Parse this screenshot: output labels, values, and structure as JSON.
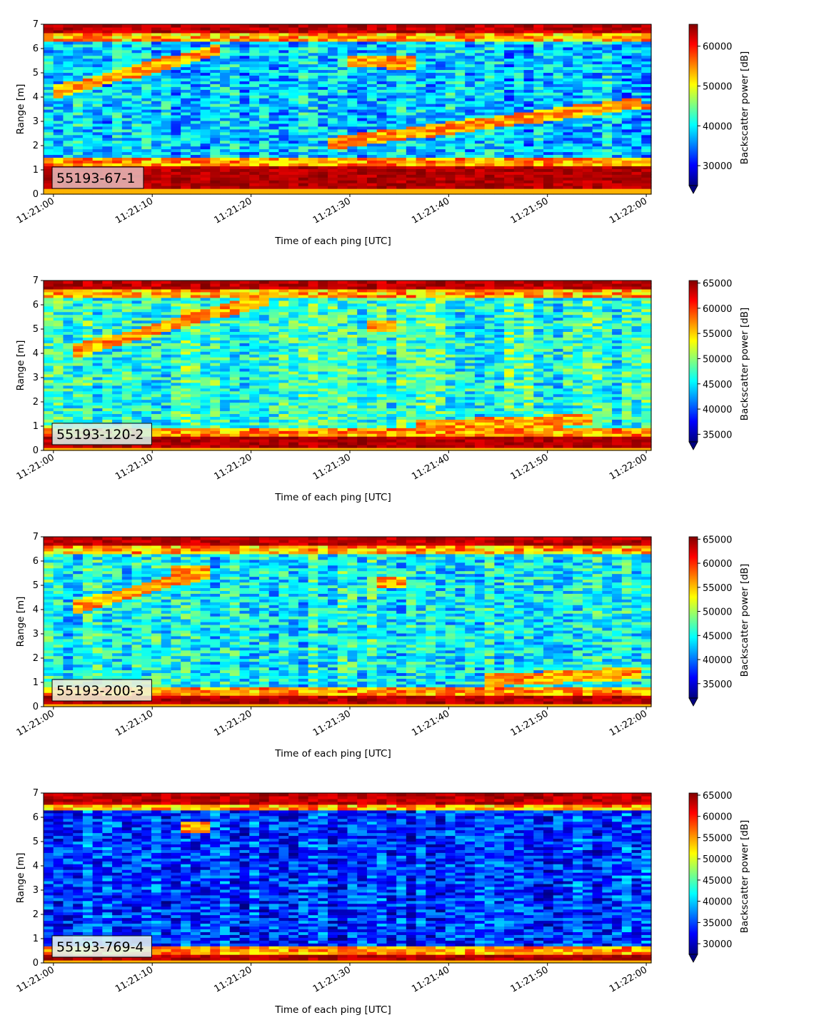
{
  "chart_data": [
    {
      "type": "heatmap",
      "label": "55193-67-1",
      "xlabel": "Time of each ping [UTC]",
      "ylabel": "Range [m]",
      "xticks": [
        "11:21:00",
        "11:21:10",
        "11:21:20",
        "11:21:30",
        "11:21:40",
        "11:21:50",
        "11:22:00"
      ],
      "yticks": [
        "0",
        "1",
        "2",
        "3",
        "4",
        "5",
        "6",
        "7"
      ],
      "xlim_seconds": [
        -1,
        60.5
      ],
      "ylim": [
        0,
        7
      ],
      "colorbar": {
        "label": "Backscatter power [dB]",
        "ticks": [
          "30000",
          "40000",
          "50000",
          "60000"
        ],
        "tick_values": [
          30000,
          40000,
          50000,
          60000
        ],
        "range": [
          25000,
          65500
        ],
        "colormap": "jet"
      },
      "features": {
        "surface_band": [
          6.6,
          7.0
        ],
        "bottom_band": [
          0.2,
          1.2
        ],
        "noise_level": 0.32,
        "streaks": [
          {
            "t0": 0,
            "r0": 4.2,
            "t1": 17,
            "r1": 6.0
          },
          {
            "t0": 30,
            "r0": 5.5,
            "t1": 37,
            "r1": 5.4
          },
          {
            "t0": 28,
            "r0": 2.1,
            "t1": 60,
            "r1": 3.8
          }
        ]
      }
    },
    {
      "type": "heatmap",
      "label": "55193-120-2",
      "xlabel": "Time of each ping [UTC]",
      "ylabel": "Range [m]",
      "xticks": [
        "11:21:00",
        "11:21:10",
        "11:21:20",
        "11:21:30",
        "11:21:40",
        "11:21:50",
        "11:22:00"
      ],
      "yticks": [
        "0",
        "1",
        "2",
        "3",
        "4",
        "5",
        "6",
        "7"
      ],
      "xlim_seconds": [
        -1,
        60.5
      ],
      "ylim": [
        0,
        7
      ],
      "colorbar": {
        "label": "Backscatter power [dB]",
        "ticks": [
          "35000",
          "40000",
          "45000",
          "50000",
          "55000",
          "60000",
          "65000"
        ],
        "tick_values": [
          35000,
          40000,
          45000,
          50000,
          55000,
          60000,
          65000
        ],
        "range": [
          33500,
          65500
        ],
        "colormap": "jet"
      },
      "features": {
        "surface_band": [
          6.6,
          7.0
        ],
        "bottom_band": [
          0.1,
          0.6
        ],
        "noise_level": 0.42,
        "streaks": [
          {
            "t0": 2,
            "r0": 4.1,
            "t1": 22,
            "r1": 6.3
          },
          {
            "t0": 13,
            "r0": 5.6,
            "t1": 16,
            "r1": 5.6
          },
          {
            "t0": 32,
            "r0": 5.1,
            "t1": 35,
            "r1": 5.1
          },
          {
            "t0": 37,
            "r0": 1.0,
            "t1": 55,
            "r1": 1.3
          }
        ]
      }
    },
    {
      "type": "heatmap",
      "label": "55193-200-3",
      "xlabel": "Time of each ping [UTC]",
      "ylabel": "Range [m]",
      "xticks": [
        "11:21:00",
        "11:21:10",
        "11:21:20",
        "11:21:30",
        "11:21:40",
        "11:21:50",
        "11:22:00"
      ],
      "yticks": [
        "0",
        "1",
        "2",
        "3",
        "4",
        "5",
        "6",
        "7"
      ],
      "xlim_seconds": [
        -1,
        60.5
      ],
      "ylim": [
        0,
        7
      ],
      "colorbar": {
        "label": "Backscatter power [dB]",
        "ticks": [
          "35000",
          "40000",
          "45000",
          "50000",
          "55000",
          "60000",
          "65000"
        ],
        "tick_values": [
          35000,
          40000,
          45000,
          50000,
          55000,
          60000,
          65000
        ],
        "range": [
          32000,
          65500
        ],
        "colormap": "jet"
      },
      "features": {
        "surface_band": [
          6.6,
          7.0
        ],
        "bottom_band": [
          0.1,
          0.5
        ],
        "noise_level": 0.38,
        "streaks": [
          {
            "t0": 2,
            "r0": 4.1,
            "t1": 16,
            "r1": 5.6
          },
          {
            "t0": 12,
            "r0": 5.6,
            "t1": 16,
            "r1": 5.6
          },
          {
            "t0": 33,
            "r0": 5.1,
            "t1": 36,
            "r1": 5.1
          },
          {
            "t0": 44,
            "r0": 1.1,
            "t1": 60,
            "r1": 1.4
          }
        ]
      }
    },
    {
      "type": "heatmap",
      "label": "55193-769-4",
      "xlabel": "Time of each ping [UTC]",
      "ylabel": "Range [m]",
      "xticks": [
        "11:21:00",
        "11:21:10",
        "11:21:20",
        "11:21:30",
        "11:21:40",
        "11:21:50",
        "11:22:00"
      ],
      "yticks": [
        "0",
        "1",
        "2",
        "3",
        "4",
        "5",
        "6",
        "7"
      ],
      "xlim_seconds": [
        -1,
        60.5
      ],
      "ylim": [
        0,
        7
      ],
      "colorbar": {
        "label": "Backscatter power [dB]",
        "ticks": [
          "30000",
          "35000",
          "40000",
          "45000",
          "50000",
          "55000",
          "60000",
          "65000"
        ],
        "tick_values": [
          30000,
          35000,
          40000,
          45000,
          50000,
          55000,
          60000,
          65000
        ],
        "range": [
          27500,
          65500
        ],
        "colormap": "jet"
      },
      "features": {
        "surface_band": [
          6.5,
          7.0
        ],
        "bottom_band": [
          0.1,
          0.4
        ],
        "noise_level": 0.18,
        "streaks": [
          {
            "t0": 13,
            "r0": 5.6,
            "t1": 16,
            "r1": 5.6
          }
        ]
      }
    }
  ]
}
